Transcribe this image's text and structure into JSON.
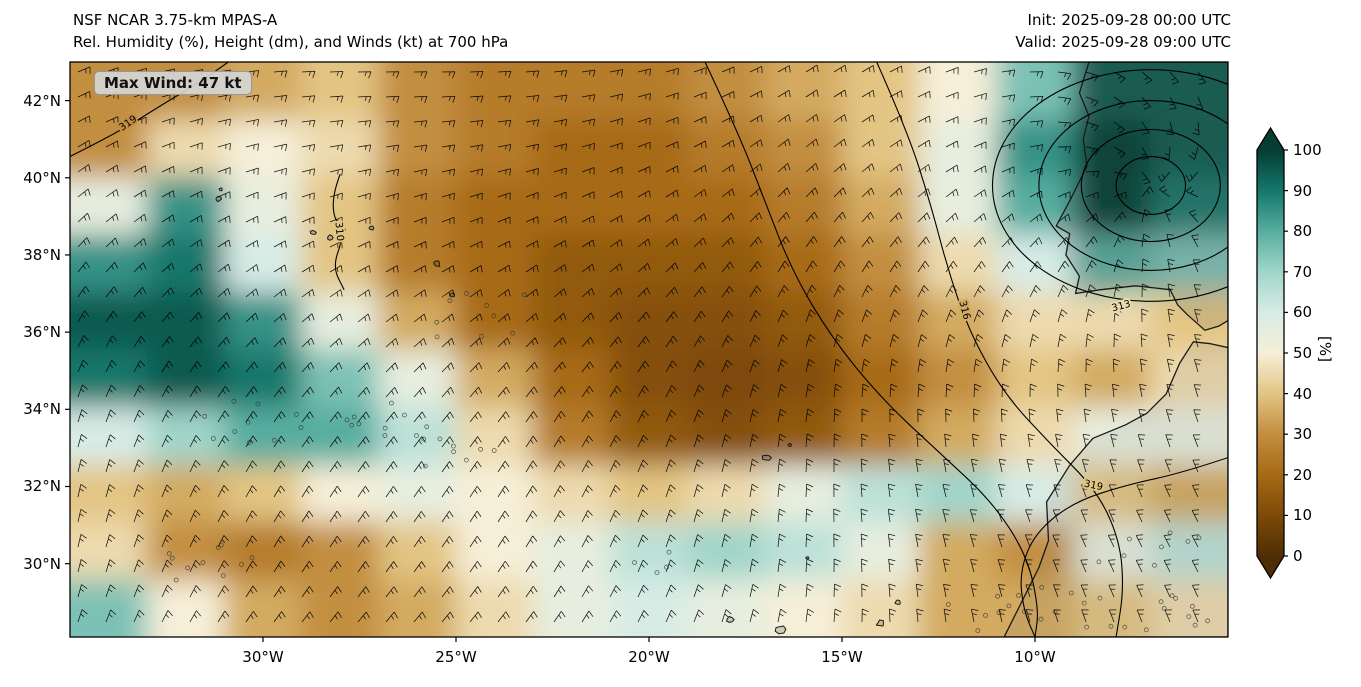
{
  "header": {
    "title_line1": "NSF NCAR 3.75-km MPAS-A",
    "title_line2": "Rel. Humidity (%), Height (dm), and Winds (kt) at 700 hPa",
    "init_label": "Init: 2025-09-28 00:00 UTC",
    "valid_label": "Valid: 2025-09-28 09:00 UTC"
  },
  "annotation": {
    "max_wind": "Max Wind: 47 kt"
  },
  "chart_data": {
    "type": "heatmap",
    "title": "Rel. Humidity (%), Height (dm), and Winds (kt) at 700 hPa",
    "model": "NSF NCAR 3.75-km MPAS-A",
    "init_time": "2025-09-28 00:00 UTC",
    "valid_time": "2025-09-28 09:00 UTC",
    "field": "700 hPa relative humidity (shaded, %), geopotential height (contours, dm), wind barbs (kt)",
    "max_wind_kt": 47,
    "wind_units": "kt",
    "lon_range": [
      -35,
      -5
    ],
    "lat_range": [
      28.1,
      43.0
    ],
    "x_ticks": [
      {
        "label": "30°W",
        "lon": -30
      },
      {
        "label": "25°W",
        "lon": -25
      },
      {
        "label": "20°W",
        "lon": -20
      },
      {
        "label": "15°W",
        "lon": -15
      },
      {
        "label": "10°W",
        "lon": -10
      }
    ],
    "y_ticks": [
      {
        "label": "42°N",
        "lat": 42
      },
      {
        "label": "40°N",
        "lat": 40
      },
      {
        "label": "38°N",
        "lat": 38
      },
      {
        "label": "36°N",
        "lat": 36
      },
      {
        "label": "34°N",
        "lat": 34
      },
      {
        "label": "32°N",
        "lat": 32
      },
      {
        "label": "30°N",
        "lat": 30
      }
    ],
    "colorbar": {
      "label": "[%]",
      "min": 0,
      "max": 100,
      "ticks": [
        0,
        10,
        20,
        30,
        40,
        50,
        60,
        70,
        80,
        90,
        100
      ],
      "stops": [
        {
          "v": 0,
          "c": "#4f2d04"
        },
        {
          "v": 10,
          "c": "#7d4a08"
        },
        {
          "v": 20,
          "c": "#a76a16"
        },
        {
          "v": 30,
          "c": "#c28e3f"
        },
        {
          "v": 40,
          "c": "#e3c583"
        },
        {
          "v": 50,
          "c": "#f6efd8"
        },
        {
          "v": 60,
          "c": "#d8ece6"
        },
        {
          "v": 70,
          "c": "#a0d5c9"
        },
        {
          "v": 80,
          "c": "#57ada0"
        },
        {
          "v": 90,
          "c": "#15776b"
        },
        {
          "v": 100,
          "c": "#053d33"
        }
      ]
    },
    "rh_grid": {
      "lons": [
        -34,
        -32,
        -30,
        -28,
        -26,
        -24,
        -22,
        -20,
        -18,
        -16,
        -14,
        -12,
        -10,
        -8,
        -6
      ],
      "lats": [
        42.3,
        40.8,
        39.3,
        37.8,
        36.3,
        34.8,
        33.3,
        31.8,
        30.3,
        28.8
      ],
      "values": [
        [
          30,
          30,
          35,
          40,
          30,
          25,
          25,
          25,
          30,
          35,
          40,
          50,
          75,
          95,
          95
        ],
        [
          30,
          45,
          50,
          45,
          30,
          25,
          20,
          20,
          25,
          30,
          40,
          55,
          85,
          100,
          95
        ],
        [
          55,
          85,
          55,
          40,
          25,
          20,
          20,
          20,
          20,
          25,
          35,
          55,
          80,
          100,
          90
        ],
        [
          85,
          90,
          60,
          40,
          25,
          20,
          15,
          15,
          15,
          20,
          30,
          45,
          60,
          80,
          75
        ],
        [
          95,
          95,
          85,
          55,
          35,
          20,
          15,
          12,
          12,
          15,
          25,
          35,
          45,
          45,
          40
        ],
        [
          90,
          95,
          90,
          75,
          55,
          35,
          20,
          12,
          10,
          12,
          20,
          30,
          40,
          35,
          45
        ],
        [
          60,
          70,
          80,
          80,
          65,
          45,
          25,
          15,
          12,
          15,
          25,
          35,
          45,
          55,
          55
        ],
        [
          40,
          35,
          40,
          50,
          55,
          50,
          45,
          40,
          45,
          55,
          65,
          70,
          60,
          40,
          35
        ],
        [
          45,
          30,
          25,
          30,
          40,
          50,
          55,
          65,
          70,
          65,
          55,
          35,
          30,
          55,
          65
        ],
        [
          75,
          50,
          35,
          30,
          35,
          45,
          55,
          60,
          55,
          50,
          45,
          35,
          35,
          40,
          45
        ]
      ]
    },
    "height_contours": [
      {
        "label": "319",
        "points": [
          [
            -35,
            40.55
          ],
          [
            -33.8,
            41.15
          ],
          [
            -32.6,
            41.9
          ],
          [
            -31.6,
            42.5
          ],
          [
            -30.9,
            43.0
          ]
        ]
      },
      {
        "label": "",
        "points": [
          [
            -18.55,
            43
          ],
          [
            -17.7,
            41.2
          ],
          [
            -17.0,
            39.4
          ],
          [
            -16.3,
            37.6
          ],
          [
            -15.3,
            35.9
          ],
          [
            -14.0,
            34.3
          ],
          [
            -12.5,
            32.9
          ],
          [
            -11.1,
            31.6
          ],
          [
            -10.2,
            30.2
          ],
          [
            -9.9,
            28.8
          ],
          [
            -10.0,
            28.1
          ]
        ]
      },
      {
        "label": "316",
        "points": [
          [
            -14.1,
            43
          ],
          [
            -13.3,
            41.2
          ],
          [
            -12.7,
            39.3
          ],
          [
            -12.25,
            37.6
          ],
          [
            -11.7,
            36.0
          ],
          [
            -10.8,
            34.4
          ],
          [
            -9.6,
            33.1
          ],
          [
            -8.4,
            31.9
          ],
          [
            -7.8,
            30.6
          ],
          [
            -7.7,
            29.3
          ],
          [
            -7.9,
            28.1
          ]
        ]
      },
      {
        "label": "319",
        "points": [
          [
            -5,
            32.75
          ],
          [
            -6.2,
            32.35
          ],
          [
            -7.6,
            32.05
          ],
          [
            -9.0,
            31.6
          ],
          [
            -10.0,
            30.8
          ],
          [
            -10.4,
            29.8
          ],
          [
            -10.3,
            28.8
          ],
          [
            -10.0,
            28.1
          ]
        ]
      },
      {
        "label": "310",
        "points": [
          [
            -28.0,
            40.1
          ],
          [
            -28.3,
            39.3
          ],
          [
            -27.9,
            38.5
          ],
          [
            -28.2,
            37.7
          ],
          [
            -27.9,
            37.1
          ]
        ]
      }
    ],
    "cyclone_contours": {
      "label": "313",
      "center": [
        -7.0,
        39.8
      ],
      "radii_deg": [
        [
          0.9,
          0.75
        ],
        [
          1.8,
          1.45
        ],
        [
          2.9,
          2.2
        ],
        [
          4.1,
          3.0
        ]
      ]
    },
    "contour_labels": [
      {
        "text": "319",
        "lon": -33.45,
        "lat": 41.35,
        "rot": -35
      },
      {
        "text": "310",
        "lon": -28.1,
        "lat": 38.6,
        "rot": 85
      },
      {
        "text": "316",
        "lon": -11.9,
        "lat": 36.55,
        "rot": 75
      },
      {
        "text": "313",
        "lon": -7.75,
        "lat": 36.6,
        "rot": -15
      },
      {
        "text": "319",
        "lon": -8.5,
        "lat": 31.95,
        "rot": 12
      }
    ],
    "coastlines": [
      {
        "name": "iberia",
        "close": true,
        "fill": "rgba(100,100,100,0.16)",
        "points": [
          [
            -8.6,
            43
          ],
          [
            -8.85,
            42.2
          ],
          [
            -8.6,
            41.6
          ],
          [
            -8.75,
            41.0
          ],
          [
            -8.65,
            40.3
          ],
          [
            -9.1,
            39.4
          ],
          [
            -9.45,
            38.75
          ],
          [
            -9.1,
            38.55
          ],
          [
            -9.2,
            38.0
          ],
          [
            -8.85,
            37.45
          ],
          [
            -8.95,
            37.0
          ],
          [
            -8.3,
            37.1
          ],
          [
            -7.4,
            37.2
          ],
          [
            -6.5,
            37.1
          ],
          [
            -6.3,
            36.7
          ],
          [
            -6.05,
            36.45
          ],
          [
            -5.6,
            36.05
          ],
          [
            -5.25,
            36.15
          ],
          [
            -5.0,
            36.3
          ],
          [
            -5.0,
            43.0
          ]
        ]
      },
      {
        "name": "morocco",
        "close": true,
        "fill": "rgba(100,100,100,0.10)",
        "points": [
          [
            -5.0,
            35.6
          ],
          [
            -5.45,
            35.7
          ],
          [
            -5.9,
            35.75
          ],
          [
            -6.25,
            35.2
          ],
          [
            -6.6,
            34.4
          ],
          [
            -7.1,
            33.9
          ],
          [
            -7.65,
            33.6
          ],
          [
            -8.5,
            33.25
          ],
          [
            -9.1,
            32.55
          ],
          [
            -9.7,
            31.6
          ],
          [
            -9.65,
            30.6
          ],
          [
            -9.9,
            29.9
          ],
          [
            -10.2,
            29.3
          ],
          [
            -10.55,
            28.6
          ],
          [
            -10.8,
            28.1
          ],
          [
            -5.0,
            28.1
          ]
        ]
      }
    ],
    "islands": [
      {
        "name": "flores",
        "lon": -31.15,
        "lat": 39.45,
        "size": 3
      },
      {
        "name": "corvo",
        "lon": -31.1,
        "lat": 39.7,
        "size": 2
      },
      {
        "name": "faial",
        "lon": -28.7,
        "lat": 38.58,
        "size": 3
      },
      {
        "name": "pico",
        "lon": -28.25,
        "lat": 38.45,
        "size": 3.5
      },
      {
        "name": "sao-jorge",
        "lon": -27.95,
        "lat": 38.65,
        "size": 3
      },
      {
        "name": "terceira",
        "lon": -27.2,
        "lat": 38.7,
        "size": 3
      },
      {
        "name": "sao-miguel",
        "lon": -25.5,
        "lat": 37.78,
        "size": 4
      },
      {
        "name": "santa-maria",
        "lon": -25.1,
        "lat": 36.97,
        "size": 2.5
      },
      {
        "name": "madeira",
        "lon": -16.95,
        "lat": 32.75,
        "size": 4.5
      },
      {
        "name": "porto-santo",
        "lon": -16.35,
        "lat": 33.07,
        "size": 2
      },
      {
        "name": "savage-is",
        "lon": -15.9,
        "lat": 30.15,
        "size": 1.5
      },
      {
        "name": "la-palma",
        "lon": -17.9,
        "lat": 28.55,
        "size": 3.5
      },
      {
        "name": "tenerife",
        "lon": -16.6,
        "lat": 28.3,
        "size": 5
      },
      {
        "name": "fuerteventura",
        "lon": -14.0,
        "lat": 28.45,
        "size": 4
      },
      {
        "name": "lanzarote",
        "lon": -13.55,
        "lat": 29.0,
        "size": 3.5
      }
    ]
  }
}
